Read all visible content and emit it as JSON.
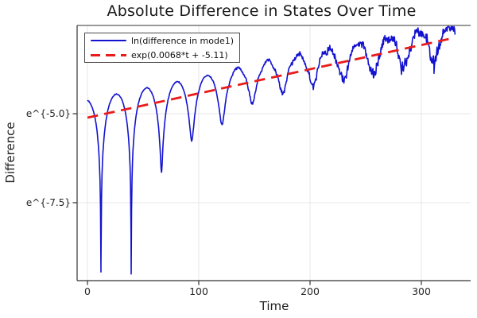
{
  "title": "Absolute Difference in States Over Time",
  "axes": {
    "xlabel": "Time",
    "ylabel": "Difference",
    "xtick_labels": [
      "0",
      "100",
      "200",
      "300"
    ],
    "ytick_labels": [
      "e^{-5.0}",
      "e^{-7.5}"
    ]
  },
  "legend": {
    "entries": [
      {
        "label": "ln(difference in mode1)",
        "color": "#1212d0",
        "dash": "solid"
      },
      {
        "label": "exp(0.0068*t + -5.11)",
        "color": "#e81c18",
        "dash": "dashed"
      }
    ]
  },
  "colors": {
    "blue_series": "#1212d0",
    "red_fit": "#e81c18",
    "grid": "#e7e7e7",
    "axis": "#333333",
    "tick_text": "#262626",
    "background": "#ffffff",
    "legend_border": "#4a4a4a"
  },
  "chart_data": {
    "type": "line",
    "title": "Absolute Difference in States Over Time",
    "xlabel": "Time",
    "ylabel": "Difference",
    "grid": true,
    "legend_position": "top-left",
    "x_axis": {
      "lim": [
        -9.3,
        344.3
      ],
      "ticks": [
        0,
        100,
        200,
        300
      ],
      "tick_labels": [
        "0",
        "100",
        "200",
        "300"
      ]
    },
    "y_axis": {
      "scale": "ln",
      "lim_ln": [
        -9.69,
        -2.52
      ],
      "ticks_ln": [
        -5.0,
        -7.5
      ],
      "tick_labels": [
        "e^{-5.0}",
        "e^{-7.5}"
      ]
    },
    "series": [
      {
        "name": "ln(difference in mode1)",
        "color": "#1212d0",
        "style": "solid",
        "width": 1.6,
        "model": {
          "kind": "ln_abs_beat",
          "trend_slope": 0.0068,
          "trend_intercept": -5.11,
          "beat_period": 27.2,
          "first_cusp_t": 12.1,
          "peak_offset_start": 0.5,
          "peak_offset_end": 0.3,
          "t_start": 0,
          "t_end": 330.5,
          "dt": 0.45,
          "dip_depths_below_trend": [
            4.42,
            4.66,
            1.99,
            1.29,
            1.02,
            0.58,
            0.5,
            0.48,
            0.55,
            0.6,
            0.62,
            0.6
          ],
          "noise": {
            "base": 0.012,
            "max": 0.14,
            "ramp_start": 105,
            "ramp_end": 320,
            "cusp_boost": 1.1,
            "cusp_width": 4.5
          },
          "wobble": {
            "amp": 0.055,
            "period": 9.5,
            "ramp_start": 90,
            "ramp_end": 210
          }
        }
      },
      {
        "name": "exp(0.0068*t + -5.11)",
        "color": "#e81c18",
        "style": "dashed",
        "width": 2.8,
        "dash": [
          13.5,
          8
        ],
        "model": {
          "kind": "linear_ln",
          "slope": 0.0068,
          "intercept": -5.11,
          "t_start": 0,
          "t_end": 330
        }
      }
    ]
  }
}
